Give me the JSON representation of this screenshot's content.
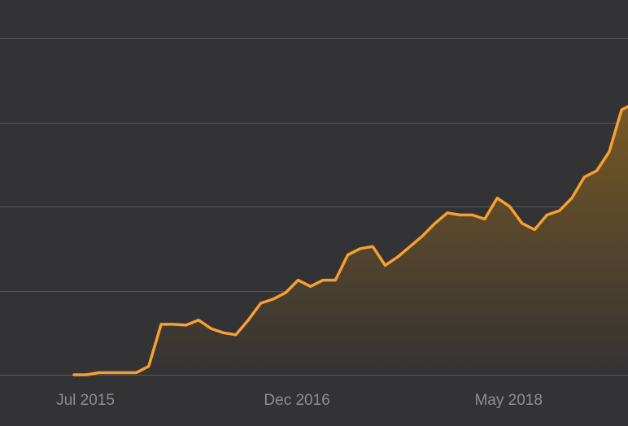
{
  "chart_data": {
    "type": "area",
    "title": "",
    "xlabel": "",
    "ylabel": "",
    "x_tick_labels": [
      "Jul 2015",
      "Dec 2016",
      "May 2018"
    ],
    "x": [
      "2015-07",
      "2015-08",
      "2015-09",
      "2015-10",
      "2015-11",
      "2015-12",
      "2016-01",
      "2016-02",
      "2016-03",
      "2016-04",
      "2016-05",
      "2016-06",
      "2016-07",
      "2016-08",
      "2016-09",
      "2016-10",
      "2016-11",
      "2016-12",
      "2017-01",
      "2017-02",
      "2017-03",
      "2017-04",
      "2017-05",
      "2017-06",
      "2017-07",
      "2017-08",
      "2017-09",
      "2017-10",
      "2017-11",
      "2017-12",
      "2018-01",
      "2018-02",
      "2018-03",
      "2018-04",
      "2018-05",
      "2018-06",
      "2018-07",
      "2018-08",
      "2018-09",
      "2018-10",
      "2018-11",
      "2018-12",
      "2019-01",
      "2019-02",
      "2019-03",
      "2019-04"
    ],
    "values": [
      0,
      0,
      0.05,
      0.05,
      0.05,
      0.05,
      0.2,
      1.2,
      1.2,
      1.18,
      1.3,
      1.1,
      1.0,
      0.95,
      1.3,
      1.7,
      1.8,
      1.95,
      2.25,
      2.1,
      2.25,
      2.25,
      2.85,
      3.0,
      3.05,
      2.6,
      2.8,
      3.05,
      3.3,
      3.6,
      3.85,
      3.8,
      3.8,
      3.7,
      4.2,
      4.0,
      3.6,
      3.45,
      3.8,
      3.9,
      4.2,
      4.7,
      4.85,
      5.3,
      6.3,
      6.45
    ],
    "ylim": [
      0,
      8
    ],
    "y_gridlines": 4,
    "grid": true,
    "legend": "none",
    "colors": {
      "background": "#333235",
      "gridline": "#58575a",
      "line": "#f5a030",
      "fill_top": "#7a5a23",
      "fill_bottom": "#333235",
      "tick_text": "#8e8d91"
    }
  }
}
